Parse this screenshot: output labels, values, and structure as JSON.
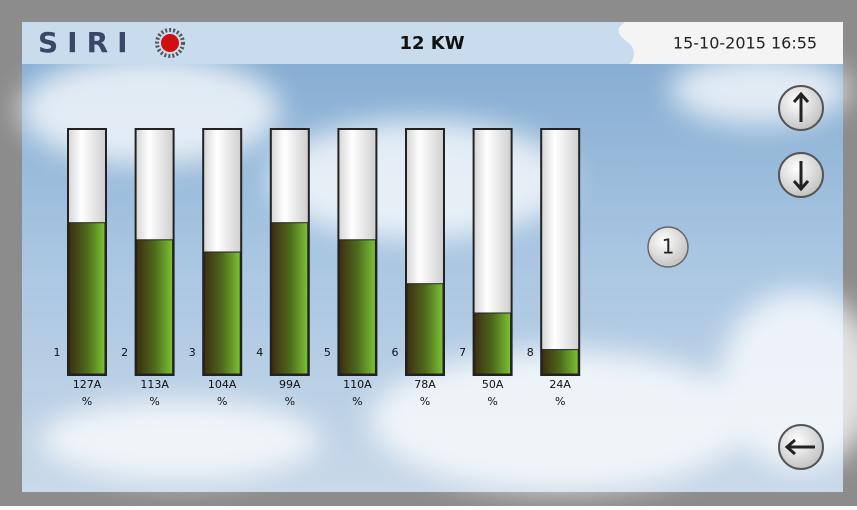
{
  "header": {
    "logo": "SIRI",
    "power": "12 KW",
    "datetime": "15-10-2015 16:55"
  },
  "channels": [
    {
      "number": "1",
      "current": "127A",
      "unit": "%",
      "level": 62
    },
    {
      "number": "2",
      "current": "113A",
      "unit": "%",
      "level": 55
    },
    {
      "number": "3",
      "current": "104A",
      "unit": "%",
      "level": 50
    },
    {
      "number": "4",
      "current": "99A",
      "unit": "%",
      "level": 62
    },
    {
      "number": "5",
      "current": "110A",
      "unit": "%",
      "level": 55
    },
    {
      "number": "6",
      "current": "78A",
      "unit": "%",
      "level": 37
    },
    {
      "number": "7",
      "current": "50A",
      "unit": "%",
      "level": 25
    },
    {
      "number": "8",
      "current": "24A",
      "unit": "%",
      "level": 10
    }
  ],
  "page_indicator": "1"
}
